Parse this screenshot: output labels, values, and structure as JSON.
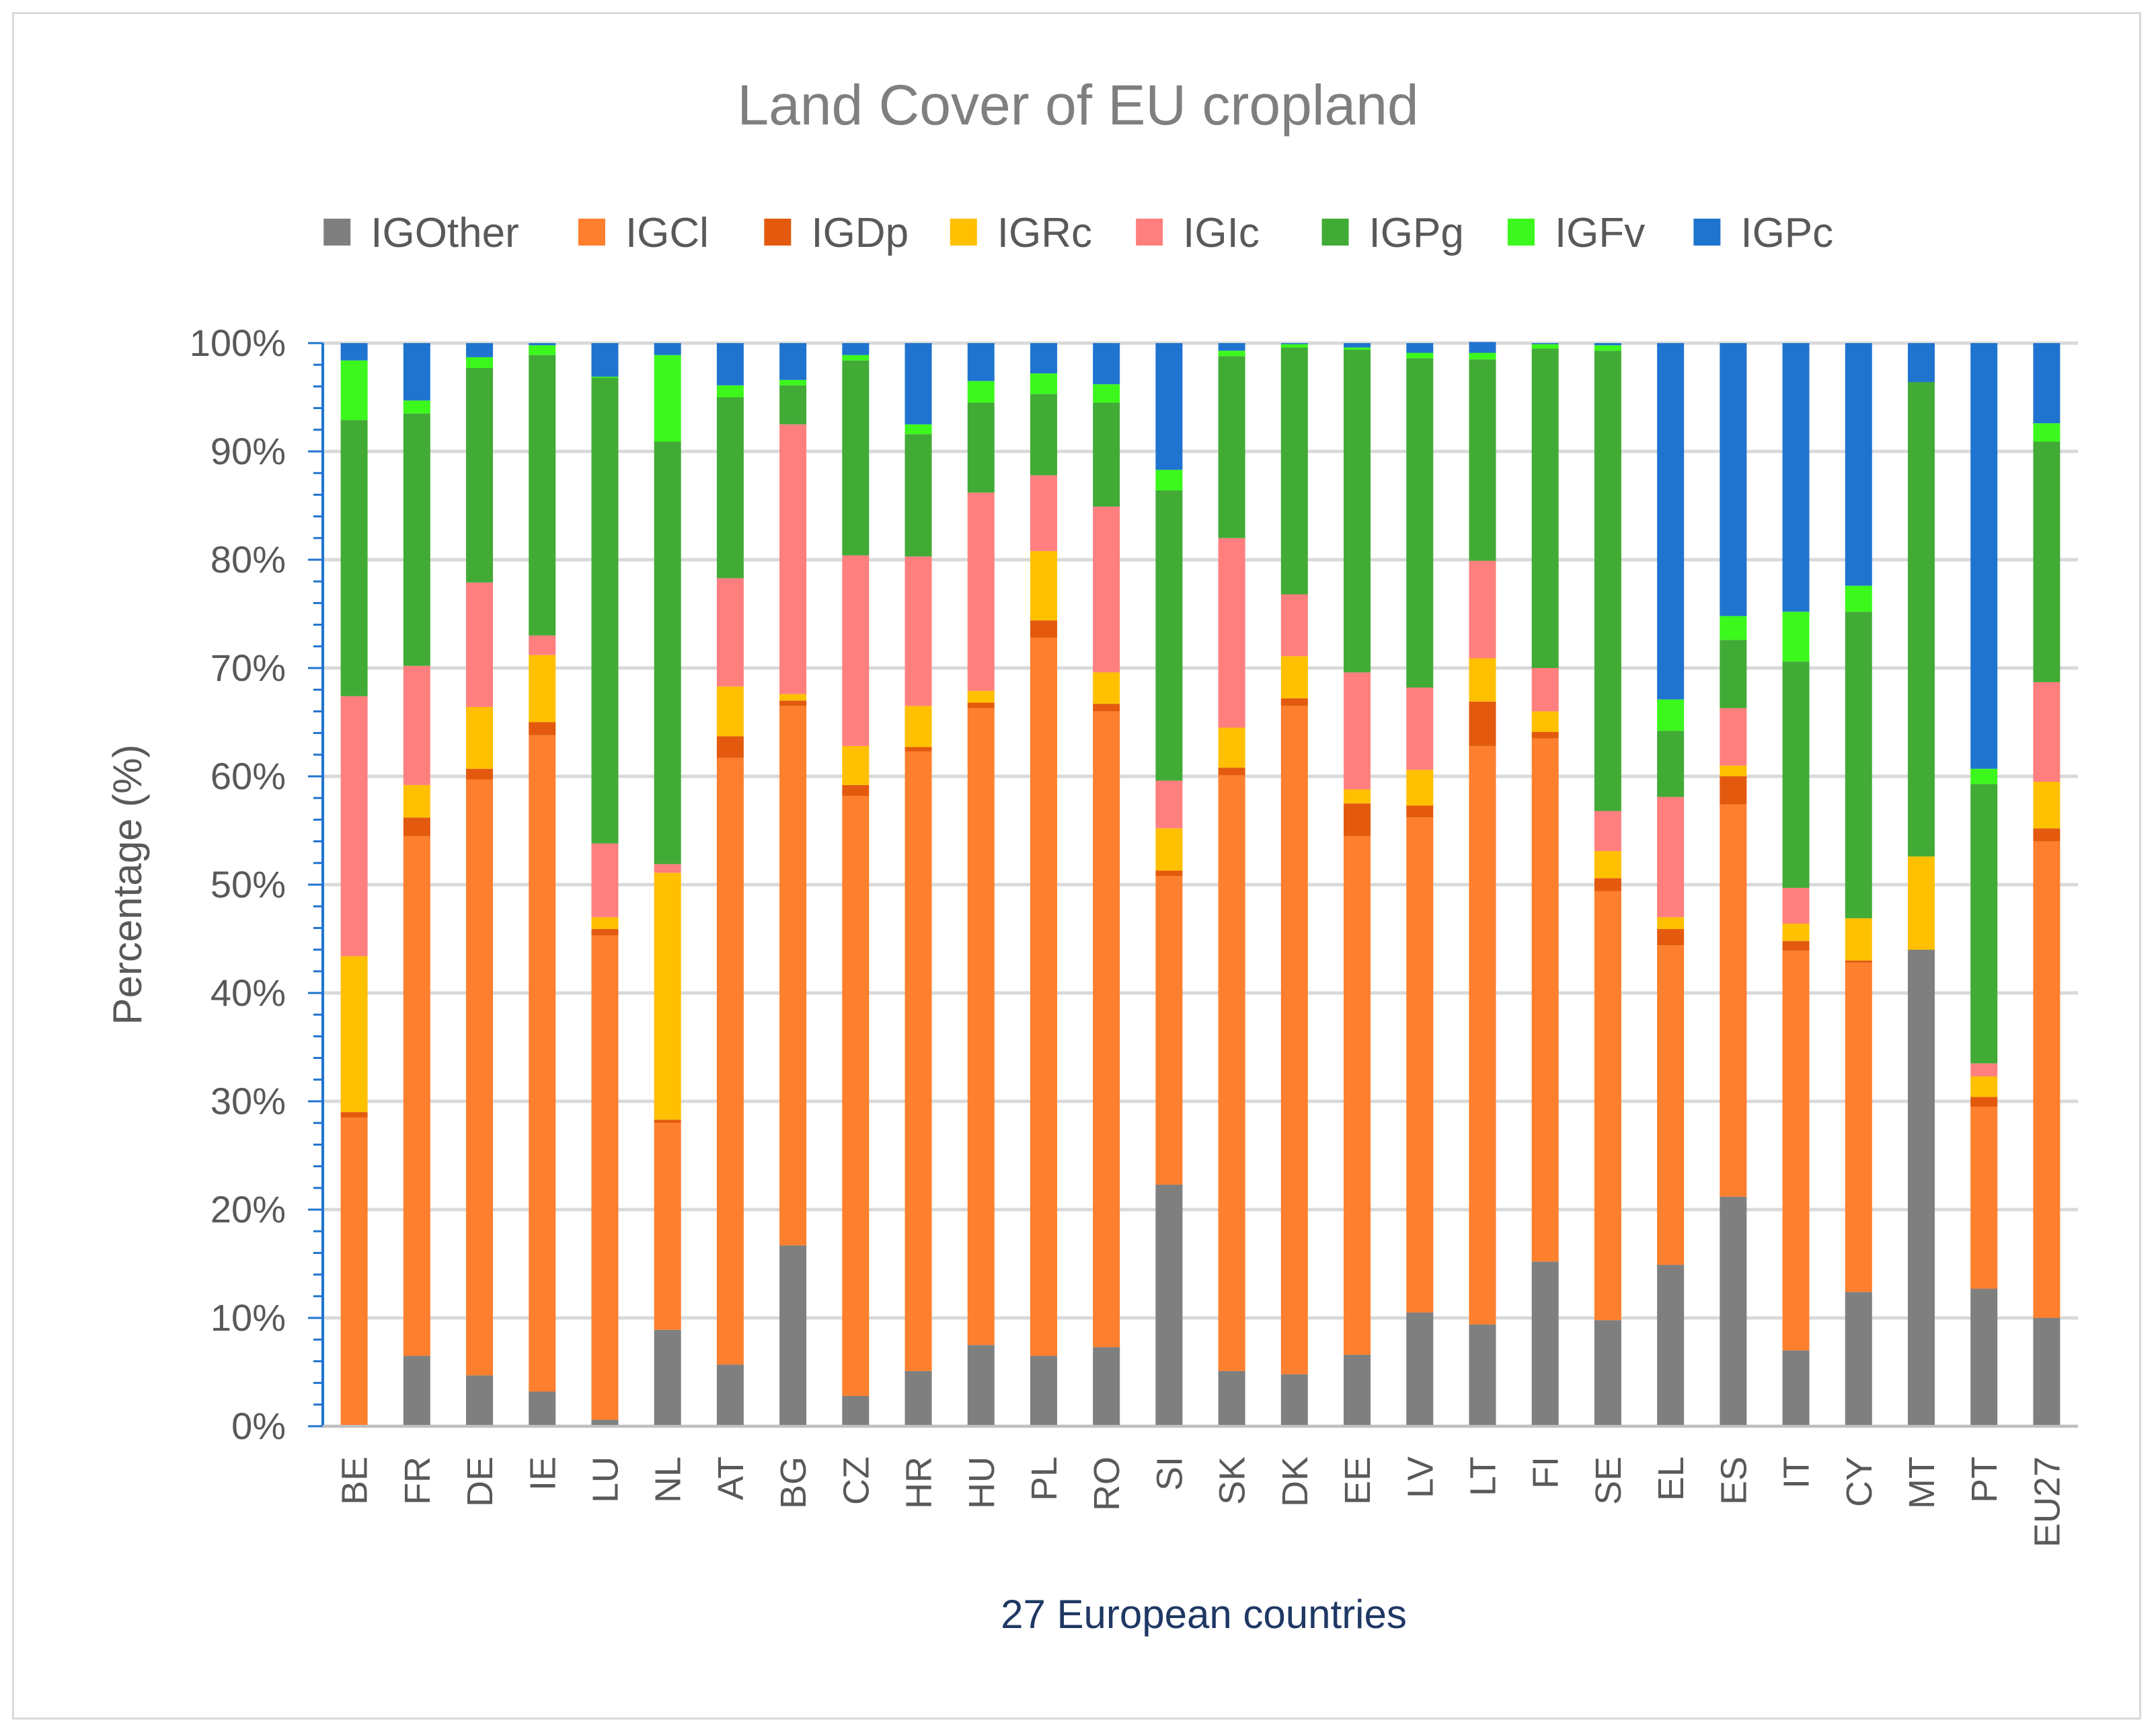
{
  "chart_data": {
    "type": "bar",
    "stacked": true,
    "title": "Land Cover of EU cropland",
    "xlabel": "27 European countries",
    "ylabel": "Percentage (%)",
    "ylim": [
      0,
      100
    ],
    "yticks": [
      "0%",
      "10%",
      "20%",
      "30%",
      "40%",
      "50%",
      "60%",
      "70%",
      "80%",
      "90%",
      "100%"
    ],
    "legend_position": "top",
    "categories": [
      "BE",
      "FR",
      "DE",
      "IE",
      "LU",
      "NL",
      "AT",
      "BG",
      "CZ",
      "HR",
      "HU",
      "PL",
      "RO",
      "SI",
      "SK",
      "DK",
      "EE",
      "LV",
      "LT",
      "FI",
      "SE",
      "EL",
      "ES",
      "IT",
      "CY",
      "MT",
      "PT",
      "EU27"
    ],
    "series": [
      {
        "name": "IGOther",
        "color": "#7f7f7f",
        "values": [
          0.0,
          6.5,
          4.7,
          3.2,
          0.6,
          8.9,
          5.7,
          16.7,
          2.8,
          5.1,
          7.5,
          6.5,
          7.3,
          22.3,
          5.1,
          4.8,
          6.6,
          10.5,
          9.4,
          15.2,
          9.8,
          14.9,
          21.2,
          7.0,
          12.4,
          44.0,
          12.7,
          10.0
        ]
      },
      {
        "name": "IGCl",
        "color": "#fe7f2d",
        "values": [
          28.5,
          48.0,
          55.0,
          60.6,
          44.7,
          19.1,
          56.0,
          49.8,
          55.4,
          57.2,
          58.8,
          66.3,
          58.7,
          28.5,
          55.0,
          61.7,
          47.9,
          45.7,
          53.4,
          48.3,
          39.6,
          29.5,
          36.2,
          36.9,
          30.4,
          0.0,
          16.8,
          44.0
        ]
      },
      {
        "name": "IGDp",
        "color": "#e35a0e",
        "values": [
          0.5,
          1.7,
          1.0,
          1.2,
          0.6,
          0.3,
          2.0,
          0.5,
          1.0,
          0.4,
          0.5,
          1.6,
          0.7,
          0.5,
          0.7,
          0.7,
          3.0,
          1.1,
          4.1,
          0.6,
          1.2,
          1.5,
          2.6,
          0.9,
          0.2,
          0.0,
          0.9,
          1.2
        ]
      },
      {
        "name": "IGRc",
        "color": "#ffc000",
        "values": [
          14.4,
          3.0,
          5.7,
          6.2,
          1.1,
          22.8,
          4.6,
          0.6,
          3.6,
          3.8,
          1.1,
          6.4,
          2.9,
          3.9,
          3.7,
          3.9,
          1.3,
          3.3,
          4.0,
          1.9,
          2.5,
          1.1,
          1.0,
          1.6,
          3.9,
          8.6,
          1.9,
          4.3
        ]
      },
      {
        "name": "IGIc",
        "color": "#ff7f7f",
        "values": [
          24.0,
          11.0,
          11.5,
          1.8,
          6.8,
          0.8,
          10.0,
          24.9,
          17.6,
          13.8,
          18.3,
          7.0,
          15.3,
          4.4,
          17.5,
          5.7,
          10.8,
          7.6,
          9.0,
          4.0,
          3.7,
          11.1,
          5.3,
          3.3,
          0.0,
          0.0,
          1.2,
          9.2
        ]
      },
      {
        "name": "IGPg",
        "color": "#41ab36",
        "values": [
          25.5,
          23.3,
          19.8,
          25.9,
          43.0,
          39.0,
          16.7,
          3.6,
          18.0,
          11.3,
          8.3,
          7.5,
          9.6,
          26.8,
          16.8,
          22.8,
          29.8,
          30.4,
          18.6,
          29.5,
          42.5,
          6.1,
          6.3,
          20.9,
          28.3,
          43.8,
          25.8,
          22.2
        ]
      },
      {
        "name": "IGFv",
        "color": "#3cf81c",
        "values": [
          5.5,
          1.2,
          1.0,
          0.9,
          0.1,
          8.0,
          1.1,
          0.5,
          0.5,
          0.9,
          2.0,
          1.9,
          1.7,
          1.9,
          0.5,
          0.3,
          0.2,
          0.5,
          0.6,
          0.4,
          0.5,
          2.9,
          2.2,
          4.6,
          2.4,
          0.0,
          1.4,
          1.7
        ]
      },
      {
        "name": "IGPc",
        "color": "#1f74cf",
        "values": [
          1.6,
          5.3,
          1.3,
          0.2,
          3.1,
          1.1,
          3.9,
          3.4,
          1.1,
          7.5,
          3.5,
          2.8,
          3.8,
          11.7,
          0.7,
          0.1,
          0.4,
          0.9,
          1.0,
          0.1,
          0.2,
          32.9,
          25.2,
          24.8,
          22.4,
          3.6,
          39.3,
          7.4
        ]
      }
    ]
  }
}
